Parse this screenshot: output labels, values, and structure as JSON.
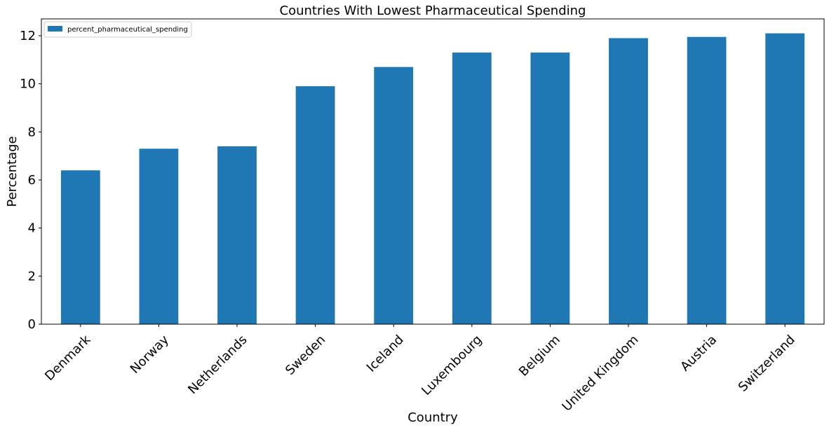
{
  "chart_data": {
    "type": "bar",
    "title": "Countries With Lowest Pharmaceutical Spending",
    "xlabel": "Country",
    "ylabel": "Percentage",
    "categories": [
      "Denmark",
      "Norway",
      "Netherlands",
      "Sweden",
      "Iceland",
      "Luxembourg",
      "Belgium",
      "United Kingdom",
      "Austria",
      "Switzerland"
    ],
    "series": [
      {
        "name": "percent_pharmaceutical_spending",
        "values": [
          6.4,
          7.3,
          7.4,
          9.9,
          10.7,
          11.3,
          11.3,
          11.9,
          11.95,
          12.1
        ],
        "color": "#1f77b4"
      }
    ],
    "ylim": [
      0,
      12.7
    ],
    "yticks": [
      0,
      2,
      4,
      6,
      8,
      10,
      12
    ],
    "grid": false,
    "legend_position": "top-left"
  }
}
